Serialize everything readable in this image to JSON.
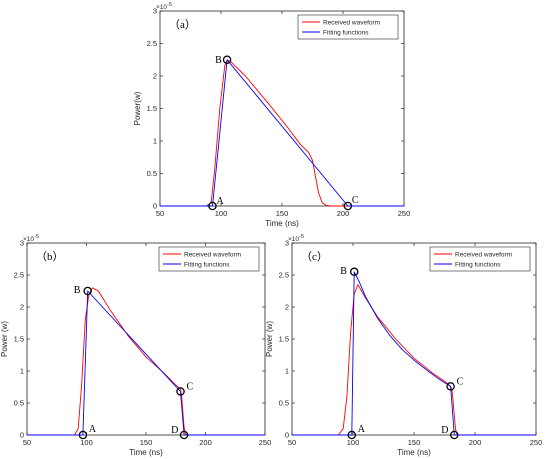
{
  "legend": {
    "received": "Received waveform",
    "fitting": "Fitting functions"
  },
  "colors": {
    "received": "#ff0000",
    "fitting": "#0000ff",
    "marker": "#000000"
  },
  "chart_data": [
    {
      "type": "line",
      "panel_label": "（a）",
      "xlabel": "Time (ns)",
      "ylabel": "Power(w)",
      "exponent_label": "×10",
      "exponent": "-5",
      "xlim": [
        50,
        250
      ],
      "ylim": [
        0,
        3
      ],
      "xticks": [
        50,
        100,
        150,
        200,
        250
      ],
      "yticks": [
        0,
        0.5,
        1,
        1.5,
        2,
        2.5,
        3
      ],
      "legend_position": "top-right",
      "series": [
        {
          "name": "Received waveform",
          "color": "#ff0000",
          "x": [
            50,
            88,
            92,
            95,
            99,
            103,
            105,
            108,
            120,
            140,
            155,
            165,
            172,
            175,
            177,
            180,
            183,
            186,
            190,
            250
          ],
          "y": [
            0,
            0,
            0.05,
            0.6,
            1.5,
            2.15,
            2.25,
            2.22,
            2.0,
            1.55,
            1.2,
            0.95,
            0.82,
            0.7,
            0.5,
            0.2,
            0.05,
            0.01,
            0,
            0
          ]
        },
        {
          "name": "Fitting functions",
          "color": "#0000ff",
          "x": [
            50,
            93,
            105,
            204,
            250
          ],
          "y": [
            0,
            0,
            2.25,
            0,
            0
          ]
        }
      ],
      "points": [
        {
          "label": "A",
          "x": 93,
          "y": 0
        },
        {
          "label": "B",
          "x": 105,
          "y": 2.25
        },
        {
          "label": "C",
          "x": 204,
          "y": 0
        }
      ]
    },
    {
      "type": "line",
      "panel_label": "（b）",
      "xlabel": "Time (ns)",
      "ylabel": "Power (w)",
      "exponent_label": "×10",
      "exponent": "-5",
      "xlim": [
        50,
        250
      ],
      "ylim": [
        0,
        3
      ],
      "xticks": [
        50,
        100,
        150,
        200,
        250
      ],
      "yticks": [
        0,
        0.5,
        1,
        1.5,
        2,
        2.5,
        3
      ],
      "legend_position": "top-right",
      "series": [
        {
          "name": "Received waveform",
          "color": "#ff0000",
          "x": [
            50,
            90,
            93,
            96,
            99,
            102,
            105,
            110,
            120,
            135,
            150,
            165,
            175,
            179,
            180,
            181,
            182,
            183,
            184,
            250
          ],
          "y": [
            0,
            0,
            0.1,
            0.8,
            1.8,
            2.2,
            2.3,
            2.25,
            1.95,
            1.55,
            1.22,
            0.97,
            0.78,
            0.72,
            0.6,
            0.35,
            0.12,
            0.03,
            0,
            0
          ]
        },
        {
          "name": "Fitting functions",
          "color": "#0000ff",
          "x": [
            50,
            97,
            101,
            179,
            182,
            250
          ],
          "y": [
            0,
            0,
            2.25,
            0.68,
            0,
            0
          ]
        }
      ],
      "points": [
        {
          "label": "A",
          "x": 97,
          "y": 0
        },
        {
          "label": "B",
          "x": 101,
          "y": 2.25
        },
        {
          "label": "C",
          "x": 179,
          "y": 0.68
        },
        {
          "label": "D",
          "x": 182,
          "y": 0
        }
      ]
    },
    {
      "type": "line",
      "panel_label": "（c）",
      "xlabel": "Time (ns)",
      "ylabel": "Power (w)",
      "exponent_label": "×10",
      "exponent": "-5",
      "xlim": [
        50,
        250
      ],
      "ylim": [
        0,
        3
      ],
      "xticks": [
        50,
        100,
        150,
        200,
        250
      ],
      "yticks": [
        0,
        0.5,
        1,
        1.5,
        2,
        2.5,
        3
      ],
      "legend_position": "top-right",
      "series": [
        {
          "name": "Received waveform",
          "color": "#ff0000",
          "x": [
            50,
            88,
            92,
            95,
            98,
            101,
            104,
            110,
            120,
            135,
            150,
            165,
            178,
            181,
            182,
            183,
            184,
            185,
            186,
            250
          ],
          "y": [
            0,
            0,
            0.1,
            0.6,
            1.6,
            2.2,
            2.35,
            2.15,
            1.85,
            1.5,
            1.2,
            0.97,
            0.8,
            0.72,
            0.55,
            0.3,
            0.1,
            0.02,
            0,
            0
          ]
        },
        {
          "name": "Fitting functions",
          "color": "#0000ff",
          "x": [
            50,
            99,
            101,
            105,
            110,
            120,
            130,
            140,
            150,
            160,
            170,
            180,
            183,
            250
          ],
          "y": [
            0,
            0,
            2.55,
            2.4,
            2.17,
            1.83,
            1.56,
            1.34,
            1.17,
            1.02,
            0.88,
            0.76,
            0,
            0
          ]
        }
      ],
      "points": [
        {
          "label": "A",
          "x": 99,
          "y": 0
        },
        {
          "label": "B",
          "x": 101,
          "y": 2.55
        },
        {
          "label": "C",
          "x": 180,
          "y": 0.76
        },
        {
          "label": "D",
          "x": 183,
          "y": 0
        }
      ]
    }
  ]
}
